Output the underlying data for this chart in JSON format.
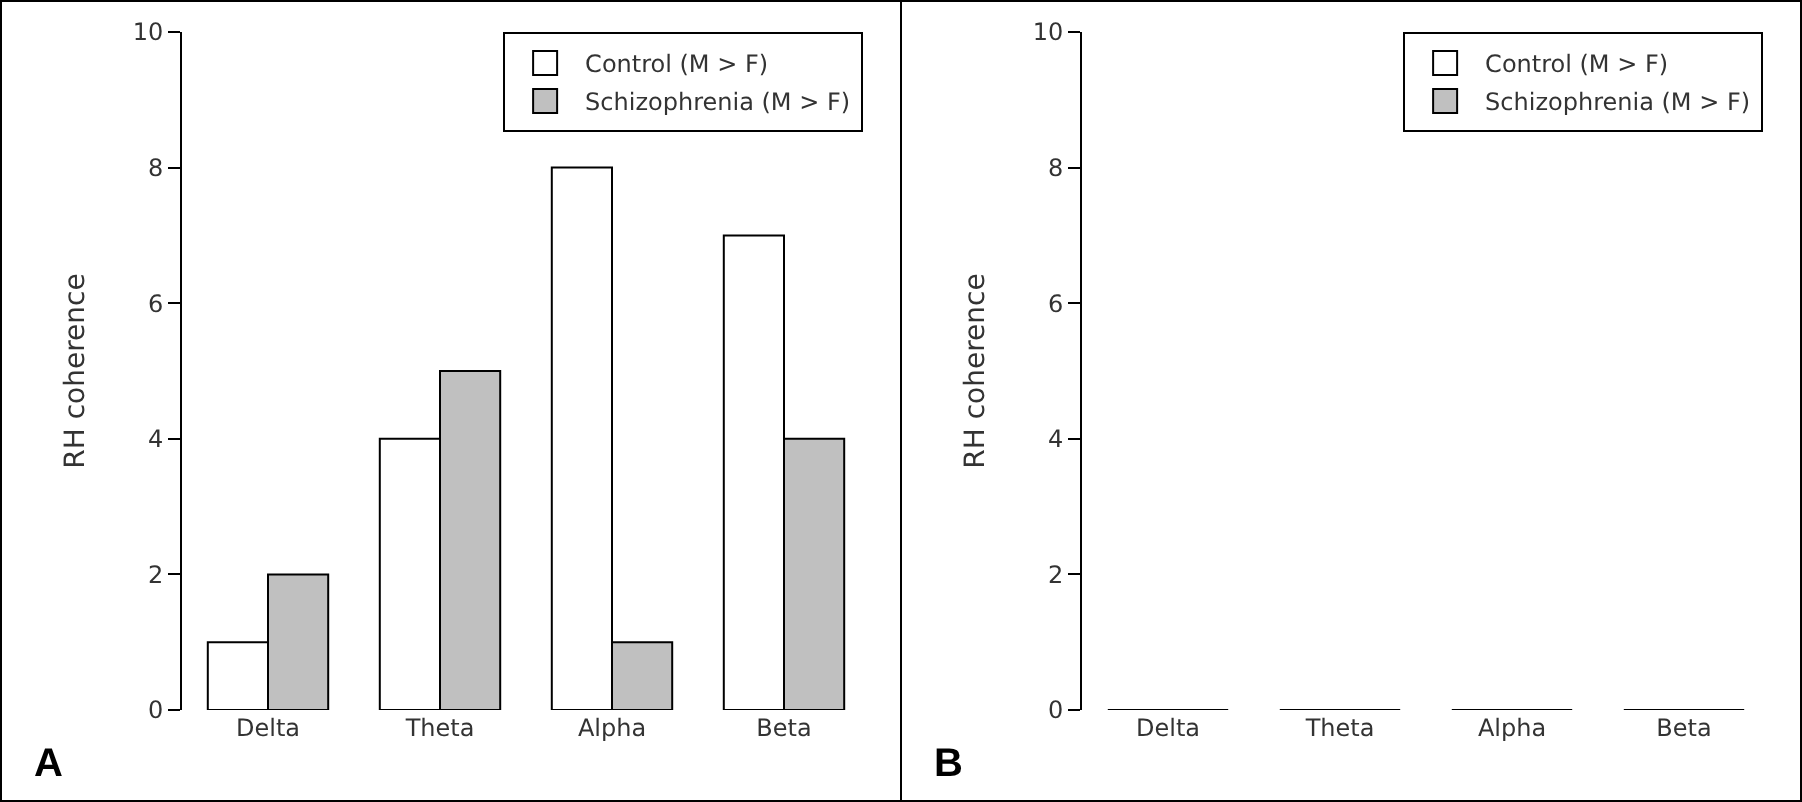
{
  "chart_data": [
    {
      "type": "bar",
      "ylabel": "RH coherence",
      "categories": [
        "Delta",
        "Theta",
        "Alpha",
        "Beta"
      ],
      "series": [
        {
          "name": "Control (M > F)",
          "color": "#ffffff",
          "values": [
            1,
            4,
            8,
            7
          ]
        },
        {
          "name": "Schizophrenia (M > F)",
          "color": "#c0c0c0",
          "values": [
            2,
            5,
            1,
            4
          ]
        }
      ],
      "ylim": [
        0,
        10
      ],
      "yticks": [
        0,
        2,
        4,
        6,
        8,
        10
      ],
      "grid": false,
      "legend": "top right",
      "annotations": [
        "A"
      ]
    },
    {
      "type": "bar",
      "ylabel": "RH coherence",
      "categories": [
        "Delta",
        "Theta",
        "Alpha",
        "Beta"
      ],
      "series": [
        {
          "name": "Control (M > F)",
          "color": "#ffffff",
          "values": [
            0,
            0,
            0,
            0
          ]
        },
        {
          "name": "Schizophrenia (M > F)",
          "color": "#c0c0c0",
          "values": [
            0,
            0,
            0,
            0
          ]
        }
      ],
      "ylim": [
        0,
        10
      ],
      "yticks": [
        0,
        2,
        4,
        6,
        8,
        10
      ],
      "grid": false,
      "legend": "top right",
      "annotations": [
        "B"
      ]
    }
  ]
}
